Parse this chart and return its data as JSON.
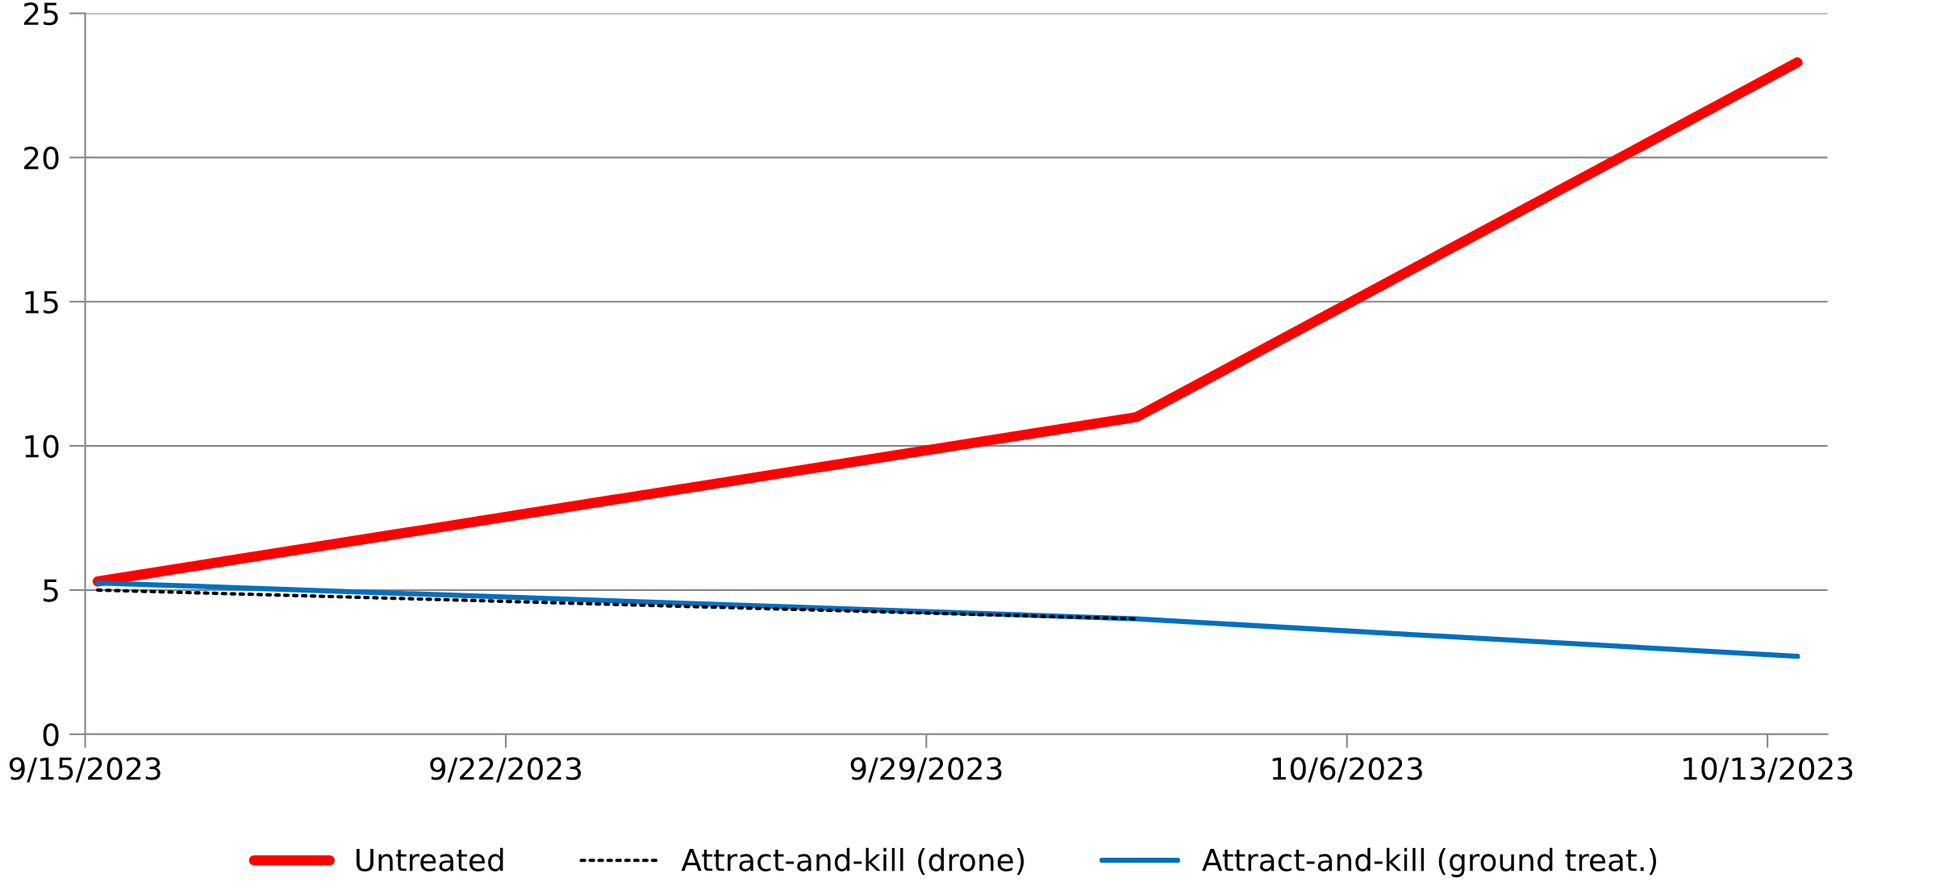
{
  "chart_data": {
    "type": "line",
    "x": [
      "2023-09-15T05:00",
      "2023-10-02T12:00",
      "2023-10-13T12:00"
    ],
    "series": [
      {
        "name": "Untreated",
        "color": "#ff0000",
        "values": [
          5.3,
          11.0,
          23.3
        ]
      },
      {
        "name": "Attract-and-kill (drone)",
        "color": "#000000",
        "line_style": "dotted",
        "values": [
          5.0,
          4.0,
          null
        ]
      },
      {
        "name": "Attract-and-kill (ground treat.)",
        "color": "#0070c0",
        "values": [
          5.25,
          4.0,
          2.7
        ]
      }
    ],
    "xlim": [
      "2023-09-15",
      "2023-10-14"
    ],
    "xticks": [
      {
        "value": "2023-09-15",
        "label": "9/15/2023"
      },
      {
        "value": "2023-09-22",
        "label": "9/22/2023"
      },
      {
        "value": "2023-09-29",
        "label": "9/29/2023"
      },
      {
        "value": "2023-10-06",
        "label": "10/6/2023"
      },
      {
        "value": "2023-10-13",
        "label": "10/13/2023"
      }
    ],
    "ylim": [
      0,
      25
    ],
    "yticks": [
      0,
      5,
      10,
      15,
      20,
      25
    ],
    "grid": "y",
    "legend": "bottom",
    "marker": "none",
    "line_style": "solid"
  }
}
